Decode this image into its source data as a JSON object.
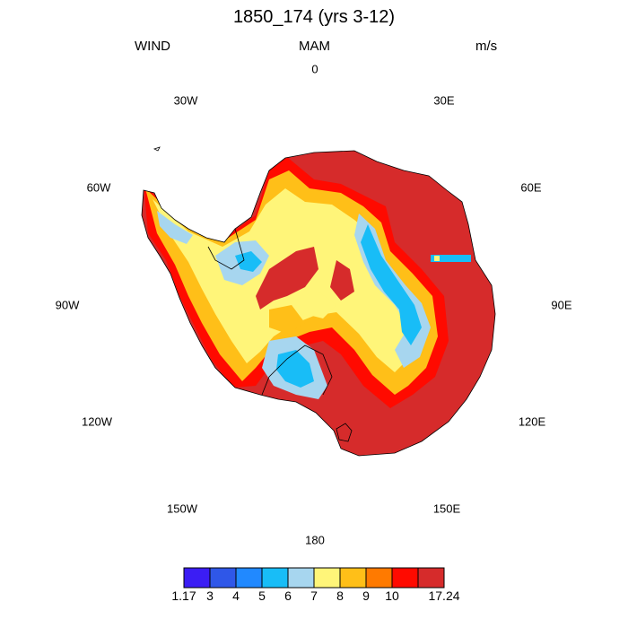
{
  "title": "1850_174 (yrs 3-12)",
  "left_string": "WIND",
  "center_string": "MAM",
  "right_string": "m/s",
  "longitude_labels": {
    "n": "0",
    "ne": "30E",
    "e60": "60E",
    "e90": "90E",
    "e120": "120E",
    "e150": "150E",
    "s": "180",
    "w150": "150W",
    "w120": "120W",
    "w90": "90W",
    "w60": "60W",
    "nw": "30W"
  },
  "colorbar": {
    "labels": [
      "1.17",
      "3",
      "4",
      "5",
      "6",
      "7",
      "8",
      "9",
      "10",
      "17.24"
    ],
    "colors": [
      "#3b1df4",
      "#2f57e8",
      "#2189ff",
      "#18bdf7",
      "#a7d6ef",
      "#fff579",
      "#ffbf18",
      "#ff7a00",
      "#ff0a00",
      "#d62b2b"
    ]
  },
  "chart_data": {
    "type": "heatmap",
    "projection": "south polar stereographic",
    "field": "WIND",
    "season": "MAM",
    "units": "m/s",
    "value_range": [
      1.17,
      17.24
    ],
    "levels": [
      3,
      4,
      5,
      6,
      7,
      8,
      9,
      10
    ]
  }
}
